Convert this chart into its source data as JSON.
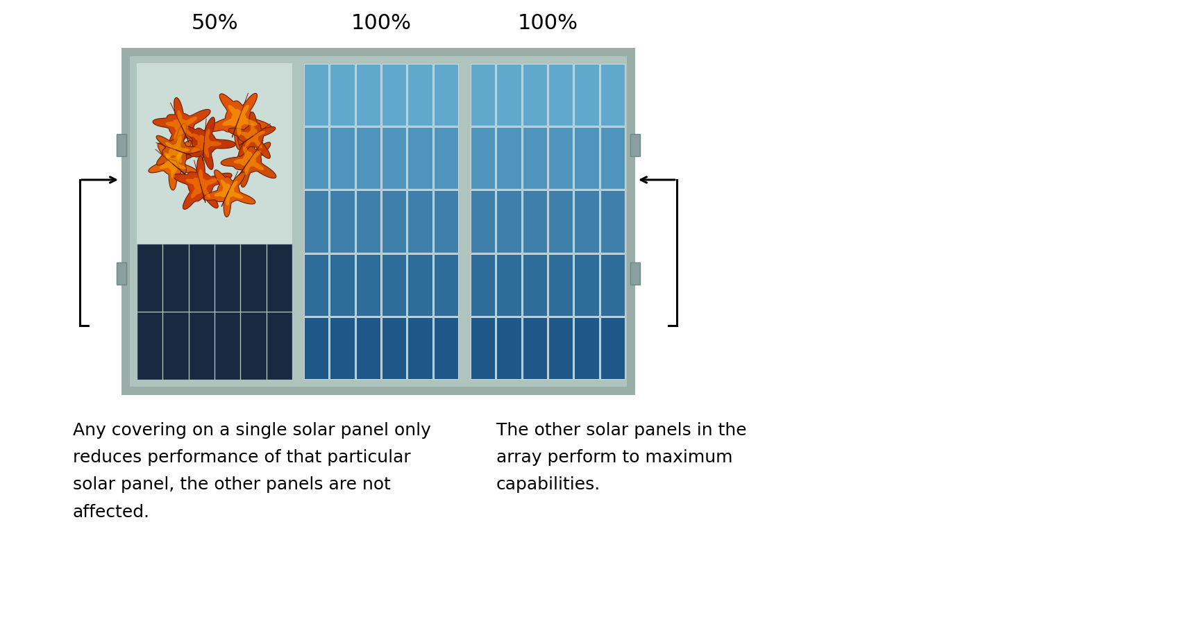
{
  "bg_color": "#ffffff",
  "frame_color": "#9aada8",
  "frame_inner_color": "#b0c4be",
  "light_bg": "#ccddd8",
  "dark_cell": "#1a2840",
  "dark_cell_line": "#2a3a50",
  "blue_top": "#5aA0c8",
  "blue_bot": "#1e5078",
  "blue_line": "#c8dce8",
  "percentages": [
    "50%",
    "100%",
    "100%"
  ],
  "left_text": "Any covering on a single solar panel only\nreduces performance of that particular\nsolar panel, the other panels are not\naffected.",
  "right_text": "The other solar panels in the\narray perform to maximum\ncapabilities.",
  "text_fontsize": 18,
  "pct_fontsize": 22
}
